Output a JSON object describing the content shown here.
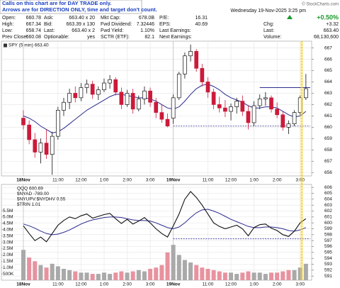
{
  "notice": [
    "Calls on this chart are for DAY TRADE only.",
    "Arrows are for DIRECTION ONLY, time and target don't count."
  ],
  "header": {
    "watermark": "© StockCharts.com",
    "datetime": "Wednesday 19-Nov-2025 3:25 pm",
    "rows": [
      {
        "cells": [
          [
            "Open:",
            "660.78"
          ],
          [
            "Ask:",
            "663.40 x 20"
          ],
          [
            "Mkt Cap:",
            "678.0B"
          ],
          [
            "P/E:",
            "16.31"
          ],
          [
            "+0.50%"
          ]
        ]
      },
      {
        "cells": [
          [
            "High:",
            "667.34"
          ],
          [
            "Bid:",
            "663.39 x 130"
          ],
          [
            "Fwd Dividend:",
            "7.32446"
          ],
          [
            "EPS:",
            "40.69"
          ],
          [
            "Chg:",
            "+3.32"
          ]
        ]
      },
      {
        "cells": [
          [
            "Low:",
            "658.74"
          ],
          [
            "Last:",
            "663.40 x 2"
          ],
          [
            "Fwd Yield:",
            "1.10%"
          ],
          [
            "Last Earnings:"
          ],
          [
            "Last:",
            "663.40"
          ]
        ]
      },
      {
        "cells": [
          [
            "Prev Close:",
            "660.08"
          ],
          [
            "Optionable:",
            "yes"
          ],
          [
            "SCTR (ETF):",
            "82.1"
          ],
          [
            "Next Earnings:"
          ],
          [
            "Volume:",
            "68,130,600"
          ]
        ]
      }
    ]
  },
  "chart_data": [
    {
      "type": "candlestick",
      "legend": [
        "SPY (5 min) 663.40"
      ],
      "ylim": [
        655.7,
        667.6
      ],
      "yticks": [
        656,
        657,
        658,
        659,
        660,
        661,
        662,
        663,
        664,
        665,
        666,
        667
      ],
      "xticks": [
        {
          "value": 0,
          "label": "18Nov"
        },
        {
          "value": 6,
          "label": "11:00"
        },
        {
          "value": 10,
          "label": "12:00"
        },
        {
          "value": 14,
          "label": "1:00"
        },
        {
          "value": 18,
          "label": "2:00"
        },
        {
          "value": 22,
          "label": "3:00"
        },
        {
          "value": 26,
          "label": "19Nov"
        },
        {
          "value": 32,
          "label": "11:00"
        },
        {
          "value": 36,
          "label": "12:00"
        },
        {
          "value": 40,
          "label": "1:00"
        },
        {
          "value": 44,
          "label": "2:00"
        },
        {
          "value": 48,
          "label": "3:00"
        }
      ],
      "up_color": "#ffffff",
      "down_color": "#cc1a3a",
      "grid": true,
      "open": [
        660.8,
        660.2,
        658.9,
        657.8,
        658.6,
        657.6,
        659.2,
        661.5,
        662.2,
        663.0,
        662.6,
        663.5,
        663.8,
        662.9,
        663.3,
        663.9,
        664.2,
        663.1,
        662.0,
        663.0,
        661.6,
        662.5,
        663.2,
        662.2,
        661.3,
        660.7,
        660.8,
        662.6,
        664.7,
        666.3,
        666.7,
        665.2,
        664.0,
        663.1,
        662.0,
        661.7,
        661.4,
        661.8,
        662.3,
        661.4,
        660.4,
        661.9,
        662.5,
        662.6,
        661.6,
        661.1,
        660.0,
        660.3,
        661.3,
        662.6
      ],
      "high": [
        661.5,
        660.6,
        659.5,
        659.0,
        659.8,
        659.6,
        661.8,
        662.6,
        663.4,
        663.6,
        663.9,
        664.2,
        664.1,
        663.6,
        664.3,
        664.6,
        664.4,
        663.5,
        663.3,
        663.4,
        662.8,
        663.6,
        663.5,
        662.6,
        662.0,
        661.2,
        662.9,
        664.9,
        666.6,
        667.3,
        666.9,
        665.6,
        664.4,
        663.4,
        662.7,
        662.4,
        662.1,
        662.6,
        662.8,
        661.9,
        662.3,
        662.9,
        663.1,
        662.8,
        662.2,
        661.4,
        660.6,
        661.5,
        662.8,
        664.7
      ],
      "low": [
        659.8,
        658.5,
        657.3,
        656.8,
        657.2,
        655.8,
        658.9,
        661.0,
        661.6,
        662.2,
        662.3,
        663.0,
        662.5,
        662.4,
        663.1,
        663.4,
        662.8,
        661.6,
        661.8,
        661.2,
        661.4,
        662.0,
        661.8,
        660.8,
        660.4,
        660.0,
        660.3,
        662.4,
        664.3,
        665.8,
        664.9,
        663.6,
        662.6,
        661.6,
        661.3,
        660.9,
        660.6,
        661.2,
        661.0,
        659.8,
        660.1,
        661.6,
        661.9,
        661.3,
        660.8,
        659.7,
        659.4,
        660.1,
        661.1,
        662.4
      ],
      "close": [
        660.2,
        658.9,
        657.8,
        658.6,
        657.6,
        659.2,
        661.5,
        662.2,
        663.0,
        662.6,
        663.5,
        663.8,
        662.9,
        663.3,
        663.9,
        664.2,
        663.1,
        662.0,
        663.0,
        661.6,
        662.5,
        663.2,
        662.2,
        661.3,
        660.7,
        660.1,
        662.6,
        664.7,
        666.3,
        666.7,
        665.2,
        664.0,
        663.1,
        662.0,
        661.7,
        661.4,
        661.8,
        662.3,
        661.4,
        660.4,
        661.9,
        662.5,
        662.6,
        661.6,
        661.1,
        660.0,
        660.3,
        661.3,
        662.6,
        663.4
      ],
      "ma": {
        "color": "#2b2b8f",
        "values": [
          661.0,
          660.8,
          660.5,
          660.1,
          659.8,
          659.5,
          659.6,
          659.9,
          660.3,
          660.7,
          661.1,
          661.5,
          661.8,
          662.1,
          662.4,
          662.7,
          662.9,
          662.9,
          662.8,
          662.7,
          662.6,
          662.6,
          662.5,
          662.3,
          662.0,
          661.7,
          661.6,
          661.8,
          662.3,
          662.9,
          663.4,
          663.7,
          663.8,
          663.6,
          663.3,
          662.9,
          662.6,
          662.4,
          662.2,
          661.9,
          661.7,
          661.7,
          661.8,
          661.8,
          661.7,
          661.4,
          661.1,
          660.9,
          661.0,
          661.4
        ]
      },
      "levels": [
        {
          "value": 663.5,
          "style": "solid"
        },
        {
          "value": 660.1,
          "style": "dashed"
        }
      ]
    },
    {
      "type": "line",
      "legend": [
        "QQQ 600.69",
        "$NYAD -789.00",
        "$NYUPV:$NYDHV 0.55",
        "$TRIN 1.01"
      ],
      "ylim": [
        590.3,
        606.5
      ],
      "yticks": [
        591,
        592,
        593,
        594,
        595,
        596,
        597,
        598,
        599,
        600,
        601,
        602,
        603,
        604,
        605,
        606
      ],
      "xticks": [
        {
          "value": 0,
          "label": "18Nov"
        },
        {
          "value": 6,
          "label": "11:00"
        },
        {
          "value": 10,
          "label": "12:00"
        },
        {
          "value": 14,
          "label": "1:00"
        },
        {
          "value": 18,
          "label": "2:00"
        },
        {
          "value": 22,
          "label": "3:00"
        },
        {
          "value": 26,
          "label": "19Nov"
        },
        {
          "value": 32,
          "label": "11:00"
        },
        {
          "value": 36,
          "label": "12:00"
        },
        {
          "value": 40,
          "label": "1:00"
        },
        {
          "value": 44,
          "label": "2:00"
        },
        {
          "value": 48,
          "label": "3:00"
        }
      ],
      "grid": true,
      "color": "#111111",
      "values": [
        599.5,
        598.2,
        597.0,
        597.6,
        596.8,
        598.2,
        599.6,
        600.4,
        601.0,
        600.7,
        601.2,
        601.5,
        600.8,
        601.1,
        601.4,
        601.6,
        600.7,
        599.9,
        600.6,
        599.8,
        600.3,
        600.9,
        600.0,
        599.0,
        598.2,
        597.6,
        599.5,
        601.5,
        604.0,
        605.3,
        604.3,
        603.0,
        601.5,
        600.0,
        599.4,
        599.0,
        599.3,
        599.6,
        599.0,
        597.8,
        599.2,
        599.7,
        599.8,
        599.1,
        598.7,
        598.0,
        597.7,
        598.6,
        600.0,
        600.7
      ],
      "ma": {
        "color": "#2b2b8f",
        "values": [
          599.8,
          599.5,
          599.1,
          598.6,
          598.2,
          598.0,
          598.1,
          598.4,
          598.8,
          599.3,
          599.8,
          600.2,
          600.5,
          600.7,
          600.9,
          601.0,
          601.0,
          600.9,
          600.7,
          600.5,
          600.4,
          600.4,
          600.3,
          600.0,
          599.6,
          599.2,
          599.0,
          599.3,
          600.0,
          600.9,
          601.7,
          602.2,
          602.3,
          602.0,
          601.6,
          601.1,
          600.6,
          600.2,
          599.8,
          599.4,
          599.2,
          599.2,
          599.3,
          599.3,
          599.2,
          599.0,
          598.7,
          598.6,
          598.8,
          599.2
        ]
      },
      "levels": [
        {
          "value": 597.3,
          "style": "dashed"
        }
      ],
      "volume": {
        "up_color": "#a9a9a9",
        "down_color": "#e8929f",
        "ylim": [
          0,
          7580000
        ],
        "yticks": [
          {
            "value": 500000,
            "label": "500K"
          },
          {
            "value": 1000000,
            "label": "1.0M"
          },
          {
            "value": 1500000,
            "label": "1.5M"
          },
          {
            "value": 2000000,
            "label": "2.0M"
          },
          {
            "value": 2500000,
            "label": "2.5M"
          },
          {
            "value": 3000000,
            "label": "3.0M"
          },
          {
            "value": 3500000,
            "label": "3.5M"
          },
          {
            "value": 4000000,
            "label": "4.0M"
          },
          {
            "value": 4500000,
            "label": "4.5M"
          },
          {
            "value": 5000000,
            "label": "5.0M"
          },
          {
            "value": 5500000,
            "label": "5.5M"
          }
        ],
        "values": [
          2400000,
          1800000,
          1500000,
          1200000,
          1000000,
          1300000,
          1100000,
          900000,
          800000,
          700000,
          600000,
          600000,
          500000,
          500000,
          600000,
          500000,
          600000,
          700000,
          600000,
          700000,
          800000,
          700000,
          900000,
          1000000,
          1200000,
          2200000,
          2800000,
          2000000,
          1600000,
          1400000,
          1200000,
          1000000,
          900000,
          800000,
          700000,
          600000,
          600000,
          500000,
          600000,
          700000,
          600000,
          600000,
          500000,
          600000,
          600000,
          700000,
          800000,
          800000,
          1000000,
          1300000
        ]
      }
    }
  ]
}
